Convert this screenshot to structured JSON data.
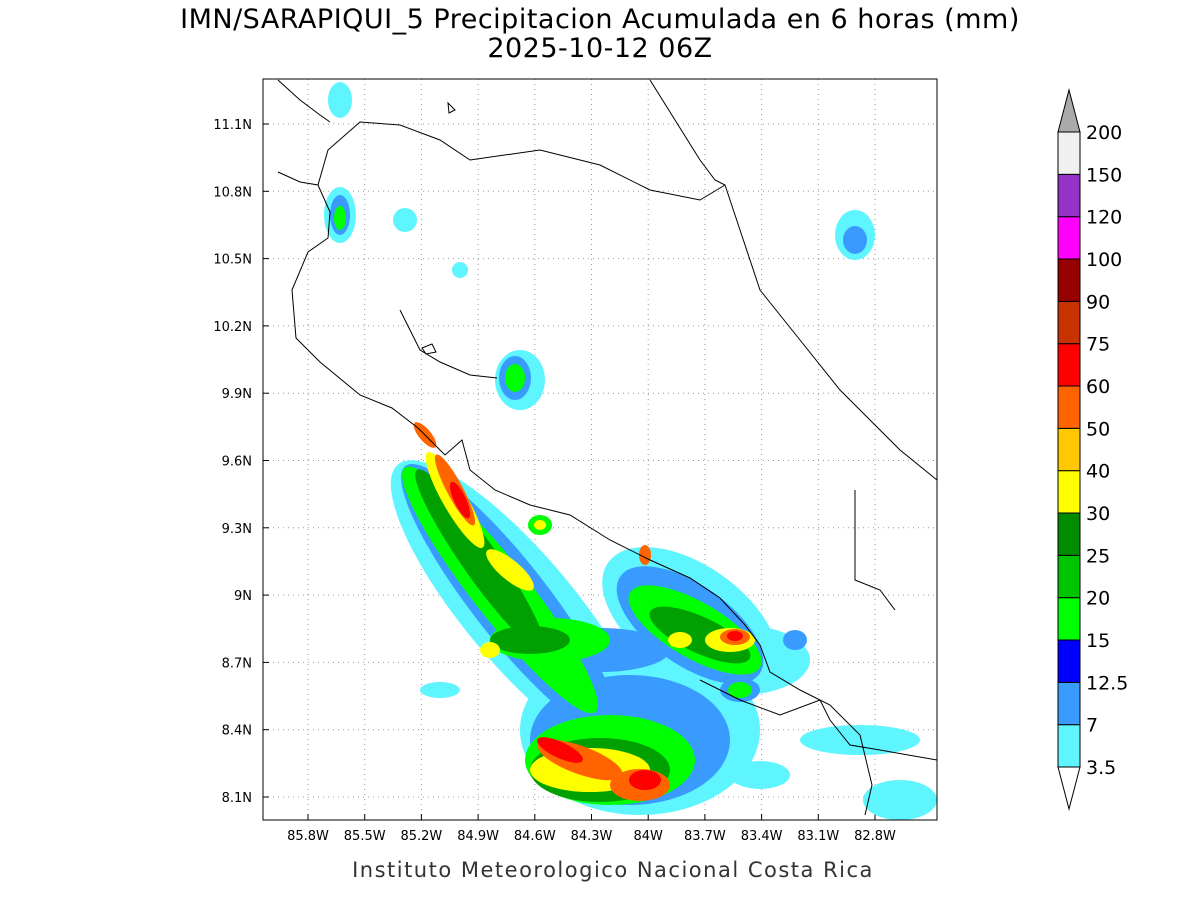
{
  "header": {
    "title": "IMN/SARAPIQUI_5 Precipitacion Acumulada en 6 horas (mm)",
    "subtitle": "2025-10-12 06Z"
  },
  "map": {
    "lat_labels": [
      "11.1N",
      "10.8N",
      "10.5N",
      "10.2N",
      "9.9N",
      "9.6N",
      "9.3N",
      "9N",
      "8.7N",
      "8.4N",
      "8.1N"
    ],
    "lon_labels": [
      "85.8W",
      "85.5W",
      "85.2W",
      "84.9W",
      "84.6W",
      "84.3W",
      "84W",
      "83.7W",
      "83.4W",
      "83.1W",
      "82.8W"
    ]
  },
  "colorbar": {
    "levels": [
      3.5,
      7,
      12.5,
      15,
      20,
      25,
      30,
      40,
      50,
      60,
      75,
      90,
      100,
      120,
      150,
      200
    ],
    "colors": [
      "#5ff5ff",
      "#3a9bff",
      "#0000ff",
      "#00ff00",
      "#00c400",
      "#008c00",
      "#ffff00",
      "#ffc800",
      "#ff6400",
      "#ff0000",
      "#c83200",
      "#960000",
      "#ff00ff",
      "#9632c8",
      "#f0f0f0"
    ],
    "below_color": "#ffffff",
    "above_color": "#aaaaaa"
  },
  "footer": {
    "text": "Instituto Meteorologico Nacional Costa Rica"
  }
}
